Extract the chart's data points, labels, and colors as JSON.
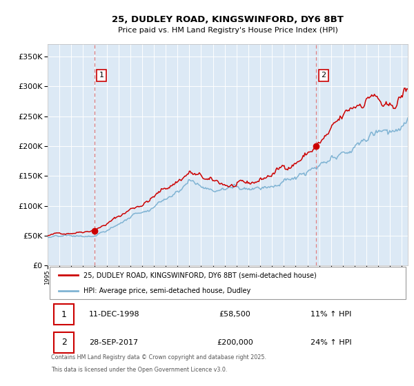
{
  "title_line1": "25, DUDLEY ROAD, KINGSWINFORD, DY6 8BT",
  "title_line2": "Price paid vs. HM Land Registry's House Price Index (HPI)",
  "bg_color": "#dce9f5",
  "fig_bg_color": "#ffffff",
  "red_line_color": "#cc0000",
  "blue_line_color": "#7fb3d3",
  "dashed_color": "#e08080",
  "ylim": [
    0,
    370000
  ],
  "yticks": [
    0,
    50000,
    100000,
    150000,
    200000,
    250000,
    300000,
    350000
  ],
  "year_start": 1995,
  "year_end": 2025,
  "sale1_year": 1998.95,
  "sale1_price": 58500,
  "sale2_year": 2017.75,
  "sale2_price": 200000,
  "legend_label_red": "25, DUDLEY ROAD, KINGSWINFORD, DY6 8BT (semi-detached house)",
  "legend_label_blue": "HPI: Average price, semi-detached house, Dudley",
  "footnote_line1": "Contains HM Land Registry data © Crown copyright and database right 2025.",
  "footnote_line2": "This data is licensed under the Open Government Licence v3.0.",
  "table_row1": [
    "1",
    "11-DEC-1998",
    "£58,500",
    "11% ↑ HPI"
  ],
  "table_row2": [
    "2",
    "28-SEP-2017",
    "£200,000",
    "24% ↑ HPI"
  ]
}
